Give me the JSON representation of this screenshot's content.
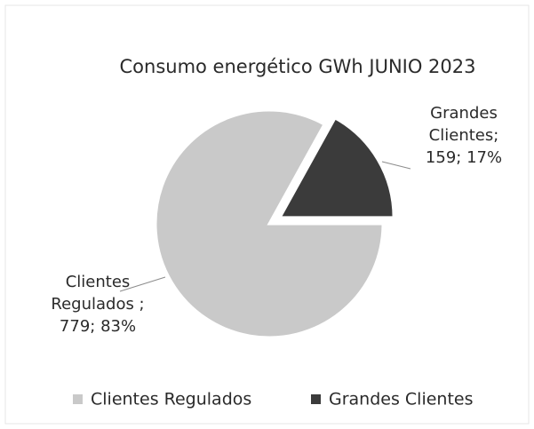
{
  "chart_data": {
    "type": "pie",
    "title": "Consumo energético GWh JUNIO 2023",
    "categories": [
      "Clientes Regulados",
      "Grandes Clientes"
    ],
    "values": [
      779,
      159
    ],
    "value_labels": [
      [
        "Clientes",
        "Regulados ;",
        "779; 83%"
      ],
      [
        "Grandes",
        "Clientes;",
        "159; 17%"
      ]
    ],
    "colors": [
      "#c9c9c9",
      "#3b3b3b"
    ],
    "legend": "bottom"
  }
}
